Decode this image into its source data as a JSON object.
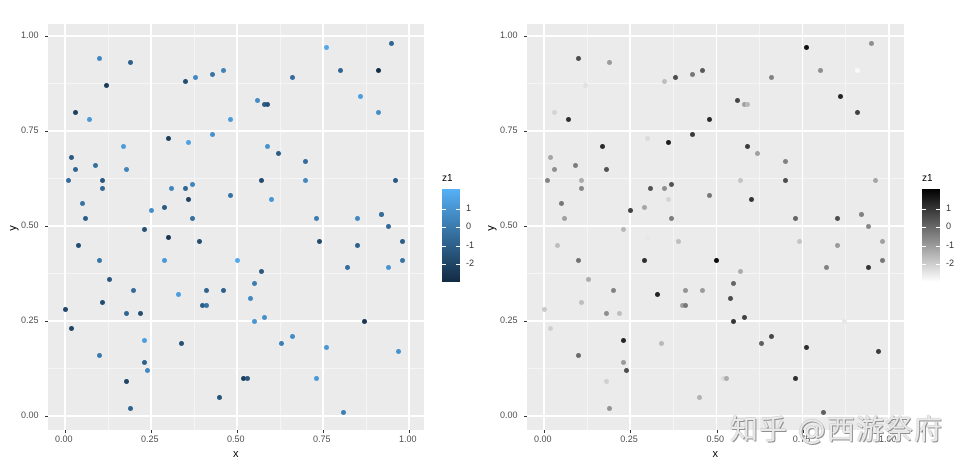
{
  "chart_data": [
    {
      "type": "scatter",
      "title": "",
      "xlabel": "x",
      "ylabel": "y",
      "xlim": [
        -0.05,
        1.03
      ],
      "ylim": [
        -0.04,
        1.03
      ],
      "x_ticks": [
        "0.00",
        "0.25",
        "0.50",
        "0.75",
        "1.00"
      ],
      "y_ticks": [
        "0.00",
        "0.25",
        "0.50",
        "0.75",
        "1.00"
      ],
      "grid": true,
      "legend": {
        "title": "z1",
        "position": "right",
        "type": "colorbar",
        "ticks": [
          "1",
          "0",
          "-1",
          "-2"
        ],
        "low_color": "#132B43",
        "high_color": "#56B1F7"
      },
      "color_mapping": "z1 (blue gradient, dark = low)"
    },
    {
      "type": "scatter",
      "title": "",
      "xlabel": "x",
      "ylabel": "y",
      "xlim": [
        -0.05,
        1.03
      ],
      "ylim": [
        -0.04,
        1.03
      ],
      "x_ticks": [
        "0.00",
        "0.25",
        "0.50",
        "0.75",
        "1.00"
      ],
      "y_ticks": [
        "0.00",
        "0.25",
        "0.50",
        "0.75",
        "1.00"
      ],
      "grid": true,
      "legend": {
        "title": "z1",
        "position": "right",
        "type": "colorbar",
        "ticks": [
          "1",
          "0",
          "-1",
          "-2"
        ],
        "low_color": "#ffffff",
        "high_color": "#000000"
      },
      "color_mapping": "z1 (grey gradient, white = low, black = high)"
    }
  ],
  "points": [
    {
      "x": 0.0,
      "y": 0.28,
      "z": -1.8
    },
    {
      "x": 0.01,
      "y": 0.62,
      "z": -0.6
    },
    {
      "x": 0.02,
      "y": 0.23,
      "z": -1.9
    },
    {
      "x": 0.02,
      "y": 0.68,
      "z": -1.2
    },
    {
      "x": 0.03,
      "y": 0.65,
      "z": -0.8
    },
    {
      "x": 0.03,
      "y": 0.8,
      "z": -2.0
    },
    {
      "x": 0.04,
      "y": 0.45,
      "z": -1.6
    },
    {
      "x": 0.05,
      "y": 0.56,
      "z": -0.4
    },
    {
      "x": 0.06,
      "y": 0.52,
      "z": -1.1
    },
    {
      "x": 0.07,
      "y": 0.78,
      "z": 0.8
    },
    {
      "x": 0.09,
      "y": 0.66,
      "z": -0.5
    },
    {
      "x": 0.1,
      "y": 0.94,
      "z": 0.3
    },
    {
      "x": 0.1,
      "y": 0.41,
      "z": -0.3
    },
    {
      "x": 0.1,
      "y": 0.16,
      "z": -0.2
    },
    {
      "x": 0.11,
      "y": 0.62,
      "z": -1.3
    },
    {
      "x": 0.11,
      "y": 0.6,
      "z": -0.7
    },
    {
      "x": 0.11,
      "y": 0.3,
      "z": -1.6
    },
    {
      "x": 0.12,
      "y": 0.87,
      "z": -2.2
    },
    {
      "x": 0.13,
      "y": 0.36,
      "z": -1.3
    },
    {
      "x": 0.17,
      "y": 0.71,
      "z": 0.9
    },
    {
      "x": 0.18,
      "y": 0.27,
      "z": -0.8
    },
    {
      "x": 0.18,
      "y": 0.09,
      "z": -1.9
    },
    {
      "x": 0.18,
      "y": 0.65,
      "z": 0.2
    },
    {
      "x": 0.19,
      "y": 0.93,
      "z": -1.0
    },
    {
      "x": 0.19,
      "y": 0.02,
      "z": -0.9
    },
    {
      "x": 0.2,
      "y": 0.33,
      "z": -0.6
    },
    {
      "x": 0.22,
      "y": 0.27,
      "z": -1.6
    },
    {
      "x": 0.23,
      "y": 0.49,
      "z": -1.5
    },
    {
      "x": 0.23,
      "y": 0.2,
      "z": 1.0
    },
    {
      "x": 0.23,
      "y": 0.14,
      "z": -1.0
    },
    {
      "x": 0.24,
      "y": 0.12,
      "z": 0.3
    },
    {
      "x": 0.25,
      "y": 0.54,
      "z": 0.5
    },
    {
      "x": 0.29,
      "y": 0.41,
      "z": 0.8
    },
    {
      "x": 0.29,
      "y": 0.55,
      "z": -1.2
    },
    {
      "x": 0.3,
      "y": 0.47,
      "z": -2.3
    },
    {
      "x": 0.3,
      "y": 0.73,
      "z": -2.1
    },
    {
      "x": 0.31,
      "y": 0.6,
      "z": 0.2
    },
    {
      "x": 0.33,
      "y": 0.32,
      "z": 1.0
    },
    {
      "x": 0.34,
      "y": 0.19,
      "z": -1.5
    },
    {
      "x": 0.35,
      "y": 0.88,
      "z": -1.6
    },
    {
      "x": 0.35,
      "y": 0.6,
      "z": -0.8
    },
    {
      "x": 0.36,
      "y": 0.57,
      "z": -2.0
    },
    {
      "x": 0.36,
      "y": 0.72,
      "z": 1.1
    },
    {
      "x": 0.37,
      "y": 0.61,
      "z": 0.2
    },
    {
      "x": 0.37,
      "y": 0.52,
      "z": -0.5
    },
    {
      "x": 0.38,
      "y": 0.89,
      "z": 0.3
    },
    {
      "x": 0.39,
      "y": 0.46,
      "z": -1.6
    },
    {
      "x": 0.4,
      "y": 0.29,
      "z": -1.1
    },
    {
      "x": 0.41,
      "y": 0.29,
      "z": -0.4
    },
    {
      "x": 0.41,
      "y": 0.33,
      "z": -0.9
    },
    {
      "x": 0.43,
      "y": 0.74,
      "z": 0.6
    },
    {
      "x": 0.43,
      "y": 0.9,
      "z": -0.4
    },
    {
      "x": 0.45,
      "y": 0.05,
      "z": -1.4
    },
    {
      "x": 0.46,
      "y": 0.33,
      "z": -1.0
    },
    {
      "x": 0.46,
      "y": 0.91,
      "z": 0.1
    },
    {
      "x": 0.48,
      "y": 0.58,
      "z": -0.4
    },
    {
      "x": 0.48,
      "y": 0.78,
      "z": 0.9
    },
    {
      "x": 0.5,
      "y": 0.41,
      "z": 1.4
    },
    {
      "x": 0.52,
      "y": 0.1,
      "z": -2.1
    },
    {
      "x": 0.53,
      "y": 0.1,
      "z": -1.3
    },
    {
      "x": 0.54,
      "y": 0.31,
      "z": 0.3
    },
    {
      "x": 0.55,
      "y": 0.25,
      "z": 0.7
    },
    {
      "x": 0.55,
      "y": 0.35,
      "z": -0.1
    },
    {
      "x": 0.56,
      "y": 0.83,
      "z": 0.4
    },
    {
      "x": 0.57,
      "y": 0.38,
      "z": -1.3
    },
    {
      "x": 0.57,
      "y": 0.62,
      "z": -1.7
    },
    {
      "x": 0.58,
      "y": 0.26,
      "z": 0.5
    },
    {
      "x": 0.58,
      "y": 0.82,
      "z": -1.1
    },
    {
      "x": 0.59,
      "y": 0.82,
      "z": -1.5
    },
    {
      "x": 0.59,
      "y": 0.71,
      "z": 0.6
    },
    {
      "x": 0.6,
      "y": 0.57,
      "z": 0.7
    },
    {
      "x": 0.62,
      "y": 0.69,
      "z": -1.1
    },
    {
      "x": 0.63,
      "y": 0.19,
      "z": 0.0
    },
    {
      "x": 0.66,
      "y": 0.89,
      "z": -0.6
    },
    {
      "x": 0.66,
      "y": 0.21,
      "z": 0.4
    },
    {
      "x": 0.7,
      "y": 0.67,
      "z": -0.6
    },
    {
      "x": 0.7,
      "y": 0.62,
      "z": 0.3
    },
    {
      "x": 0.73,
      "y": 0.1,
      "z": 0.8
    },
    {
      "x": 0.73,
      "y": 0.52,
      "z": -0.1
    },
    {
      "x": 0.74,
      "y": 0.46,
      "z": -1.7
    },
    {
      "x": 0.76,
      "y": 0.97,
      "z": 1.3
    },
    {
      "x": 0.76,
      "y": 0.18,
      "z": 0.8
    },
    {
      "x": 0.8,
      "y": 0.91,
      "z": -0.8
    },
    {
      "x": 0.81,
      "y": 0.01,
      "z": 0.0
    },
    {
      "x": 0.82,
      "y": 0.39,
      "z": -0.6
    },
    {
      "x": 0.85,
      "y": 0.52,
      "z": 0.3
    },
    {
      "x": 0.85,
      "y": 0.45,
      "z": -1.0
    },
    {
      "x": 0.86,
      "y": 0.84,
      "z": 1.0
    },
    {
      "x": 0.87,
      "y": 0.25,
      "z": -2.3
    },
    {
      "x": 0.91,
      "y": 0.91,
      "z": -2.6
    },
    {
      "x": 0.91,
      "y": 0.8,
      "z": 0.5
    },
    {
      "x": 0.92,
      "y": 0.53,
      "z": -1.3
    },
    {
      "x": 0.92,
      "y": 0.53,
      "z": -0.6
    },
    {
      "x": 0.94,
      "y": 0.5,
      "z": -0.7
    },
    {
      "x": 0.94,
      "y": 0.39,
      "z": 0.7
    },
    {
      "x": 0.95,
      "y": 0.98,
      "z": -0.8
    },
    {
      "x": 0.96,
      "y": 0.62,
      "z": -1.2
    },
    {
      "x": 0.97,
      "y": 0.17,
      "z": 0.6
    },
    {
      "x": 0.98,
      "y": 0.46,
      "z": -1.1
    },
    {
      "x": 0.98,
      "y": 0.41,
      "z": -0.4
    }
  ],
  "panels": [
    {
      "x_ticks": [
        "0.00",
        "0.25",
        "0.50",
        "0.75",
        "1.00"
      ],
      "y_ticks": [
        "0.00",
        "0.25",
        "0.50",
        "0.75",
        "1.00"
      ],
      "xlabel": "x",
      "ylabel": "y",
      "legend_title": "z1",
      "legend_ticks": [
        "1",
        "0",
        "-1",
        "-2"
      ]
    },
    {
      "x_ticks": [
        "0.00",
        "0.25",
        "0.50",
        "0.75",
        "1.00"
      ],
      "y_ticks": [
        "0.00",
        "0.25",
        "0.50",
        "0.75",
        "1.00"
      ],
      "xlabel": "x",
      "ylabel": "y",
      "legend_title": "z1",
      "legend_ticks": [
        "1",
        "0",
        "-1",
        "-2"
      ]
    }
  ],
  "watermark": "知乎 @西游祭府"
}
